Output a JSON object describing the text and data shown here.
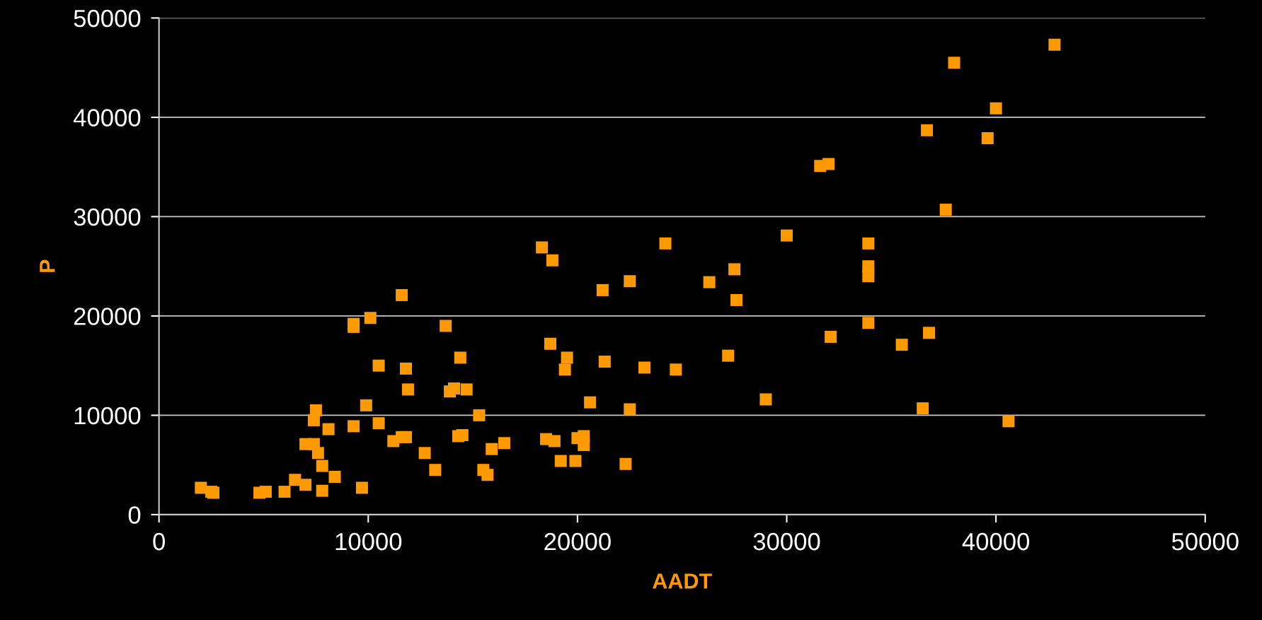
{
  "chart_data": {
    "type": "scatter",
    "xlabel": "AADT",
    "ylabel": "P",
    "xlim": [
      0,
      50000
    ],
    "ylim": [
      0,
      50000
    ],
    "xticks": [
      0,
      10000,
      20000,
      30000,
      40000,
      50000
    ],
    "yticks": [
      0,
      10000,
      20000,
      30000,
      40000,
      50000
    ],
    "grid": "y",
    "marker": "square",
    "series": [
      {
        "color": "#ff9900",
        "x": [
          2000,
          2500,
          2600,
          4800,
          5100,
          6000,
          6500,
          7000,
          7000,
          7400,
          7500,
          7400,
          7600,
          7800,
          7800,
          8100,
          8400,
          9300,
          9300,
          9300,
          9700,
          9900,
          10100,
          10500,
          10500,
          11200,
          11600,
          11600,
          11800,
          11800,
          11900,
          12700,
          13200,
          13700,
          13900,
          14100,
          14300,
          14400,
          14500,
          14700,
          15300,
          15500,
          15700,
          15900,
          16500,
          18300,
          18500,
          18700,
          18800,
          18900,
          19200,
          19400,
          19500,
          19900,
          20000,
          20300,
          20300,
          20600,
          21200,
          21300,
          22300,
          22500,
          22500,
          23200,
          24200,
          24700,
          26300,
          27200,
          27500,
          27600,
          29000,
          30000,
          31600,
          32000,
          32100,
          33900,
          33900,
          33900,
          33900,
          35500,
          36500,
          36700,
          36800,
          37600,
          38000,
          39600,
          40000,
          40600,
          42800
        ],
        "values": [
          2700,
          2300,
          2200,
          2200,
          2300,
          2300,
          3500,
          3000,
          7100,
          7100,
          10500,
          9500,
          6200,
          4900,
          2400,
          8600,
          3800,
          19200,
          8900,
          18900,
          2700,
          11000,
          19800,
          9200,
          15000,
          7400,
          7800,
          22100,
          14700,
          7800,
          12600,
          6200,
          4500,
          19000,
          12400,
          12700,
          7900,
          15800,
          8000,
          12600,
          10000,
          4500,
          4000,
          6600,
          7200,
          26900,
          7600,
          17200,
          25600,
          7400,
          5400,
          14600,
          15800,
          5400,
          7700,
          7900,
          7000,
          11300,
          22600,
          15400,
          5100,
          10600,
          23500,
          14800,
          27300,
          14600,
          23400,
          16000,
          24700,
          21600,
          11600,
          28100,
          35100,
          35300,
          17900,
          27300,
          25000,
          24000,
          19300,
          17100,
          10700,
          38700,
          18300,
          30700,
          45500,
          37900,
          40900,
          9400,
          47300
        ]
      }
    ]
  }
}
